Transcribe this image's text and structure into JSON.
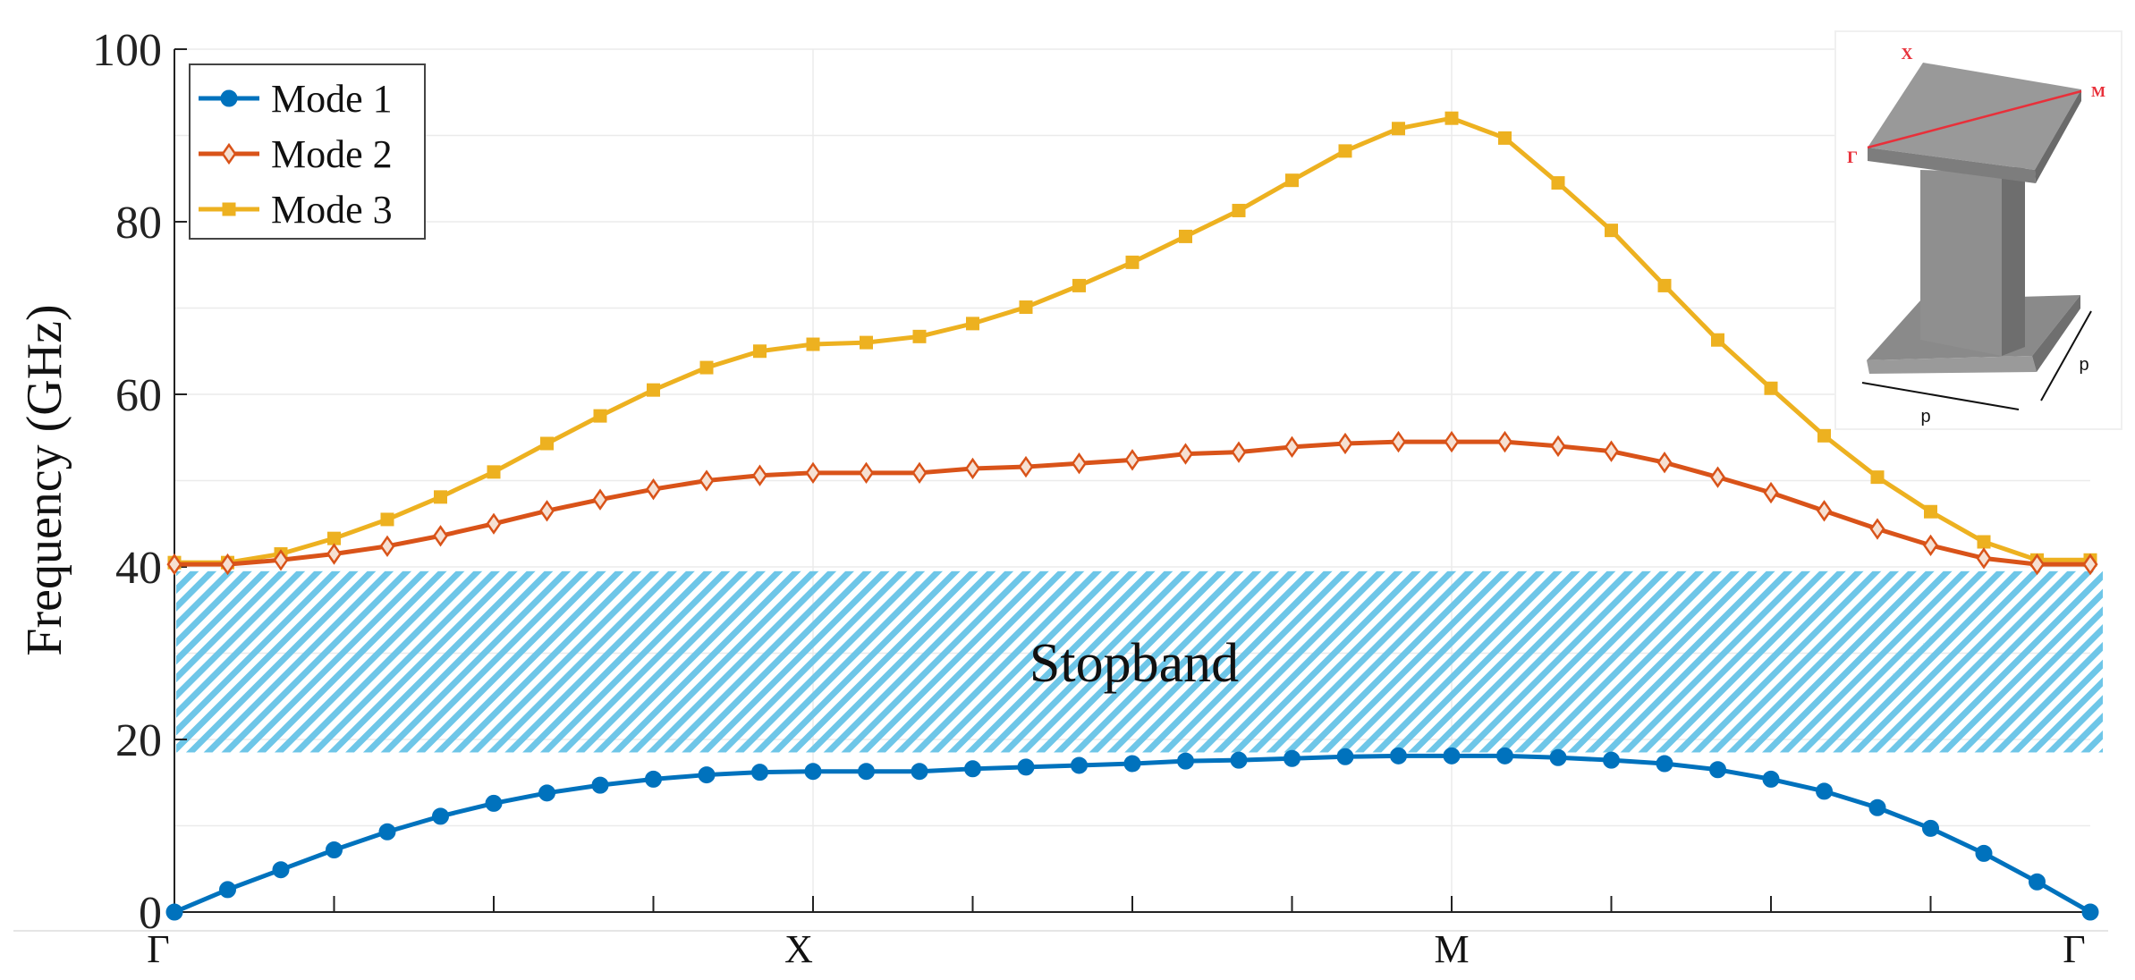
{
  "chart_data": {
    "type": "line",
    "title": "",
    "xlabel": "",
    "ylabel": "Frequency (GHz)",
    "ylim": [
      0,
      100
    ],
    "yticks": [
      0,
      20,
      40,
      60,
      80,
      100
    ],
    "grid": true,
    "legend_position": "top-left",
    "x_tick_labels": [
      {
        "pos": 0,
        "label": "Γ"
      },
      {
        "pos": 12,
        "label": "X"
      },
      {
        "pos": 24,
        "label": "M"
      },
      {
        "pos": 36,
        "label": "Γ"
      }
    ],
    "x": [
      0,
      1,
      2,
      3,
      4,
      5,
      6,
      7,
      8,
      9,
      10,
      11,
      12,
      13,
      14,
      15,
      16,
      17,
      18,
      19,
      20,
      21,
      22,
      23,
      24,
      25,
      26,
      27,
      28,
      29,
      30,
      31,
      32,
      33,
      34,
      35,
      36
    ],
    "series": [
      {
        "name": "Mode 1",
        "color": "#0072BD",
        "marker": "circle",
        "values": [
          0.0,
          2.6,
          4.9,
          7.2,
          9.3,
          11.1,
          12.6,
          13.8,
          14.7,
          15.4,
          15.9,
          16.2,
          16.3,
          16.3,
          16.3,
          16.6,
          16.8,
          17.0,
          17.2,
          17.5,
          17.6,
          17.8,
          18.0,
          18.1,
          18.1,
          18.1,
          17.9,
          17.6,
          17.2,
          16.5,
          15.4,
          14.0,
          12.1,
          9.7,
          6.8,
          3.5,
          0.0
        ]
      },
      {
        "name": "Mode 2",
        "color": "#D95319",
        "marker": "diamond",
        "values": [
          40.3,
          40.3,
          40.8,
          41.5,
          42.4,
          43.6,
          45.0,
          46.5,
          47.8,
          49.0,
          50.0,
          50.6,
          50.9,
          50.9,
          50.9,
          51.4,
          51.6,
          52.0,
          52.4,
          53.1,
          53.3,
          53.9,
          54.3,
          54.5,
          54.5,
          54.5,
          54.0,
          53.4,
          52.1,
          50.4,
          48.6,
          46.5,
          44.4,
          42.5,
          41.0,
          40.3,
          40.3
        ]
      },
      {
        "name": "Mode 3",
        "color": "#EDB120",
        "marker": "square",
        "values": [
          40.5,
          40.5,
          41.5,
          43.3,
          45.5,
          48.1,
          51.0,
          54.3,
          57.5,
          60.5,
          63.1,
          65.0,
          65.8,
          66.0,
          66.7,
          68.2,
          70.1,
          72.6,
          75.3,
          78.3,
          81.3,
          84.8,
          88.2,
          90.8,
          92.0,
          89.7,
          84.5,
          79.0,
          72.6,
          66.3,
          60.7,
          55.2,
          50.4,
          46.4,
          42.9,
          40.8,
          40.8
        ]
      }
    ],
    "stopband": {
      "ymin": 18.5,
      "ymax": 39.5,
      "label": "Stopband",
      "color": "#6EC6E8"
    }
  },
  "inset": {
    "corner_x": "X",
    "corner_m": "M",
    "corner_gamma": "Γ",
    "dim_label_bottom": "p",
    "dim_label_side": "p",
    "path_color": "#E8303A"
  }
}
